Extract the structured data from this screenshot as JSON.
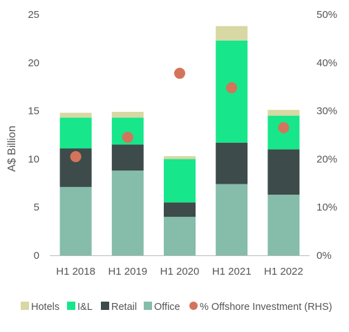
{
  "chart_data": {
    "type": "bar",
    "stacked": true,
    "categories": [
      "H1 2018",
      "H1 2019",
      "H1 2020",
      "H1 2021",
      "H1 2022"
    ],
    "series": [
      {
        "name": "Office",
        "color": "#85bcaa",
        "values": [
          7.1,
          8.8,
          4.0,
          7.4,
          6.3
        ]
      },
      {
        "name": "Retail",
        "color": "#3d4b4a",
        "values": [
          4.0,
          2.7,
          1.5,
          4.3,
          4.7
        ]
      },
      {
        "name": "I&L",
        "color": "#17e68a",
        "values": [
          3.2,
          2.8,
          4.5,
          10.6,
          3.5
        ]
      },
      {
        "name": "Hotels",
        "color": "#d8d8a4",
        "values": [
          0.5,
          0.6,
          0.3,
          1.5,
          0.6
        ]
      }
    ],
    "line_series": {
      "name": "% Offshore Investment (RHS)",
      "color": "#d4745a",
      "axis": "right",
      "values": [
        20.5,
        24.5,
        37.8,
        34.8,
        26.5
      ]
    },
    "legend_order": [
      "Hotels",
      "I&L",
      "Retail",
      "Office",
      "% Offshore Investment (RHS)"
    ],
    "legend_position": "bottom",
    "ylabel": "A$ Billion",
    "ylim": [
      0,
      25
    ],
    "yticks": [
      "0",
      "5",
      "10",
      "15",
      "20",
      "25"
    ],
    "y2lim": [
      0,
      50
    ],
    "y2ticks": [
      "0%",
      "10%",
      "20%",
      "30%",
      "40%",
      "50%"
    ],
    "grid": false
  }
}
